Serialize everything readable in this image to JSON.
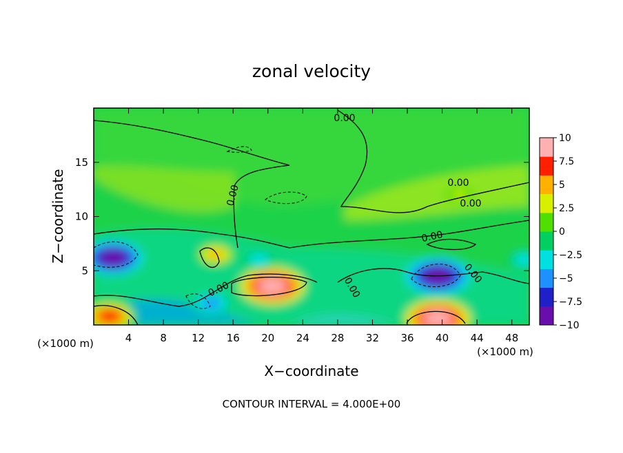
{
  "chart_data": {
    "type": "heatmap",
    "title": "zonal velocity",
    "xlabel": "X−coordinate",
    "ylabel": "Z−coordinate",
    "x_unit_left": "(×1000 m)",
    "x_unit_right": "(×1000 m)",
    "xlim": [
      0,
      50
    ],
    "ylim": [
      0,
      20
    ],
    "x_ticks": [
      4,
      8,
      12,
      16,
      20,
      24,
      28,
      32,
      36,
      40,
      44,
      48
    ],
    "y_ticks": [
      5,
      10,
      15
    ],
    "colorbar": {
      "range": [
        -10,
        10
      ],
      "tick_values": [
        10,
        7.5,
        5,
        2.5,
        0,
        -2.5,
        -5,
        -7.5,
        -10
      ],
      "tick_labels": [
        "10",
        "7.5",
        "5",
        "2.5",
        "0",
        "−2.5",
        "−5",
        "−7.5",
        "−10"
      ],
      "colors": [
        "#6a0dad",
        "#2020c8",
        "#1e90ff",
        "#00e0e0",
        "#00d060",
        "#50e000",
        "#d8f000",
        "#ffb000",
        "#ff2000",
        "#ffb0b0"
      ]
    },
    "contour_labels": [
      "0.00",
      "0.00",
      "0.00",
      "0.00",
      "0.00",
      "0.00",
      "0.00",
      "0.00"
    ],
    "footer": "CONTOUR INTERVAL = 4.000E+00",
    "features": [
      {
        "kind": "positive",
        "x": 20.5,
        "z": 3.6,
        "amplitude": 10
      },
      {
        "kind": "positive",
        "x": 39.5,
        "z": 0.6,
        "amplitude": 10
      },
      {
        "kind": "positive",
        "x": 1.8,
        "z": 0.8,
        "amplitude": 7.5
      },
      {
        "kind": "negative",
        "x": 39.5,
        "z": 4.5,
        "amplitude": -10
      },
      {
        "kind": "negative",
        "x": 2.2,
        "z": 6.2,
        "amplitude": -9
      },
      {
        "kind": "negative",
        "x": 13.5,
        "z": 2.0,
        "amplitude": -5
      },
      {
        "kind": "negative",
        "x": 19.0,
        "z": 6.0,
        "amplitude": -4
      },
      {
        "kind": "negative",
        "x": 49.5,
        "z": 6.0,
        "amplitude": -4
      },
      {
        "kind": "positive",
        "x": 14.0,
        "z": 6.5,
        "amplitude": 4
      },
      {
        "kind": "positive",
        "x": 42.0,
        "z": 12.0,
        "amplitude": 2.5
      }
    ]
  }
}
